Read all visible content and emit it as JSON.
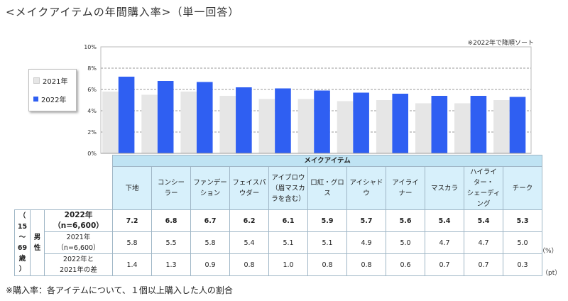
{
  "title": "<メイクアイテムの年間購入率>（単一回答）",
  "sort_note": "※2022年で降順ソート",
  "footnote": "※購入率：各アイテムについて、１個以上購入した人の割合",
  "colors": {
    "y2021": "#e6e6e6",
    "y2022": "#2f5ff2",
    "table_header": "#bfe3f3",
    "table_cat": "#d7f0fb"
  },
  "chart_data": {
    "type": "bar",
    "categories": [
      "下地",
      "コンシーラー",
      "ファンデーション",
      "フェイスパウダー",
      "アイブロウ（眉マスカラを含む）",
      "口紅・グロス",
      "アイシャドウ",
      "アイライナー",
      "マスカラ",
      "ハイライター・シェーディング",
      "チーク"
    ],
    "series": [
      {
        "name": "2021年",
        "values": [
          5.8,
          5.5,
          5.8,
          5.4,
          5.1,
          5.1,
          4.9,
          5.0,
          4.7,
          4.7,
          5.0
        ]
      },
      {
        "name": "2022年",
        "values": [
          7.2,
          6.8,
          6.7,
          6.2,
          6.1,
          5.9,
          5.7,
          5.6,
          5.4,
          5.4,
          5.3
        ]
      }
    ],
    "y_ticks": [
      "0%",
      "2%",
      "4%",
      "6%",
      "8%",
      "10%"
    ],
    "ylim": [
      0,
      10
    ],
    "grid": true,
    "legend_position": "left"
  },
  "table": {
    "header": "メイクアイテム",
    "category_labels": [
      [
        "下地"
      ],
      [
        "コンシー",
        "ラー"
      ],
      [
        "ファンデー",
        "ション"
      ],
      [
        "フェイスパ",
        "ウダー"
      ],
      [
        "アイブロウ",
        "（眉マスカ",
        "ラを含む）"
      ],
      [
        "口紅・グロ",
        "ス"
      ],
      [
        "アイシャド",
        "ウ"
      ],
      [
        "アイライ",
        "ナー"
      ],
      [
        "マスカラ"
      ],
      [
        "ハイライ",
        "ター・",
        "シェーディ",
        "ング"
      ],
      [
        "チーク"
      ]
    ],
    "side_labels": [
      "（",
      "15",
      "～",
      "69",
      "歳",
      "）"
    ],
    "side_labels2": [
      "男",
      "性"
    ],
    "rows": [
      {
        "label": [
          "2022年",
          "（n=6,600）"
        ],
        "values": [
          "7.2",
          "6.8",
          "6.7",
          "6.2",
          "6.1",
          "5.9",
          "5.7",
          "5.6",
          "5.4",
          "5.4",
          "5.3"
        ],
        "unit": ""
      },
      {
        "label": [
          "2021年",
          "（n=6,600）"
        ],
        "values": [
          "5.8",
          "5.5",
          "5.8",
          "5.4",
          "5.1",
          "5.1",
          "4.9",
          "5.0",
          "4.7",
          "4.7",
          "5.0"
        ],
        "unit": "（%）"
      },
      {
        "label": [
          "2022年と",
          "2021年の差"
        ],
        "values": [
          "1.4",
          "1.3",
          "0.9",
          "0.8",
          "1.0",
          "0.8",
          "0.8",
          "0.6",
          "0.7",
          "0.7",
          "0.3"
        ],
        "unit": "（pt）"
      }
    ]
  }
}
